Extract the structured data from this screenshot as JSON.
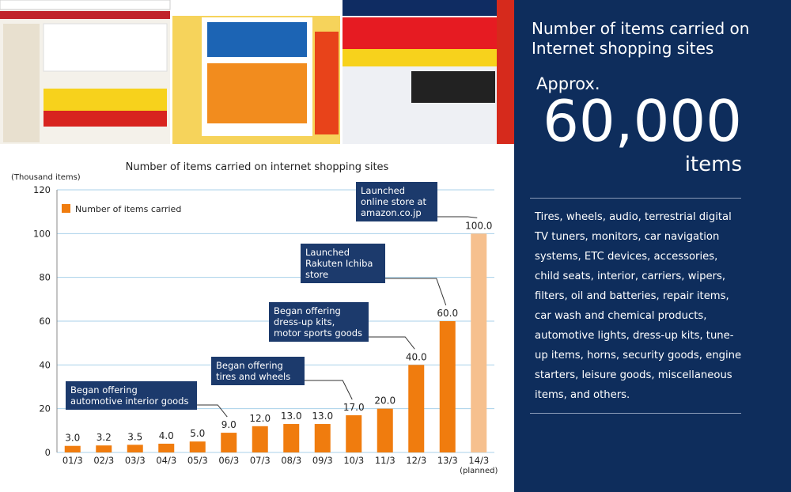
{
  "chart_data": {
    "type": "bar",
    "title": "Number of items carried on internet shopping sites",
    "y_label": "(Thousand items)",
    "categories": [
      "01/3",
      "02/3",
      "03/3",
      "04/3",
      "05/3",
      "06/3",
      "07/3",
      "08/3",
      "09/3",
      "10/3",
      "11/3",
      "12/3",
      "13/3",
      "14/3"
    ],
    "planned_note": "(planned)",
    "series": [
      {
        "name": "Number of items carried",
        "color": "#f07c0e",
        "values": [
          3,
          3.2,
          3.5,
          4,
          5,
          9,
          12,
          13,
          13,
          17,
          20,
          40,
          60,
          100
        ],
        "value_labels": [
          "3.0",
          "3.2",
          "3.5",
          "4.0",
          "5.0",
          "9.0",
          "12.0",
          "13.0",
          "13.0",
          "17.0",
          "20.0",
          "40.0",
          "60.0",
          "100.0"
        ],
        "colors": [
          "#f07c0e",
          "#f07c0e",
          "#f07c0e",
          "#f07c0e",
          "#f07c0e",
          "#f07c0e",
          "#f07c0e",
          "#f07c0e",
          "#f07c0e",
          "#f07c0e",
          "#f07c0e",
          "#f07c0e",
          "#f07c0e",
          "#f6c08e"
        ]
      }
    ],
    "ylim": [
      0,
      120
    ],
    "yticks": [
      0,
      20,
      40,
      60,
      80,
      100,
      120
    ],
    "grid": true,
    "annotations": [
      {
        "text": "Began offering automotive interior goods",
        "category": 5
      },
      {
        "text": "Began offering tires and wheels",
        "category": 9
      },
      {
        "text": "Began offering dress-up kits, motor sports goods",
        "category": 11
      },
      {
        "text": "Launched Rakuten Ichiba store",
        "category": 12
      },
      {
        "text": "Launched online store at amazon.co.jp",
        "category": 13
      }
    ]
  },
  "panel": {
    "title": "Number of items carried on Internet shopping sites",
    "approx": "Approx.",
    "count": "60,000",
    "unit": "items",
    "description": "Tires, wheels, audio, terrestrial digital TV tuners, monitors, car navigation systems, ETC devices,  accessories, child seats, interior, carriers, wipers, filters, oil and batteries, repair items, car wash and chemical products, automotive lights, dress-up kits, tune-up items, horns, security goods, engine starters, leisure goods, miscellaneous items, and others."
  }
}
